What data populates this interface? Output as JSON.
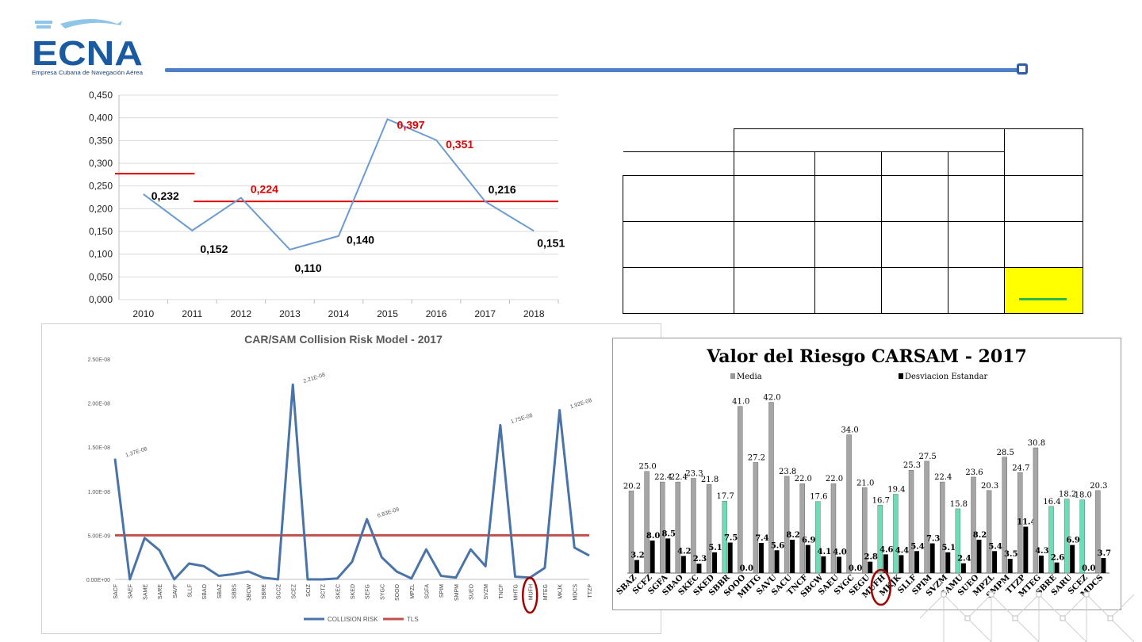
{
  "logo": {
    "name": "ECNA",
    "tagline": "Empresa Cubana de Navegación Aérea"
  },
  "chart_data": [
    {
      "type": "line",
      "title": "",
      "x": [
        "2010",
        "2011",
        "2012",
        "2013",
        "2014",
        "2015",
        "2016",
        "2017",
        "2018"
      ],
      "series": [
        {
          "values": [
            0.232,
            0.152,
            0.224,
            0.11,
            0.14,
            0.397,
            0.351,
            0.216,
            0.151
          ],
          "color": "#6b9bd1"
        }
      ],
      "point_labels": [
        "0,232",
        "0,152",
        "0,224",
        "0,110",
        "0,140",
        "0,397",
        "0,351",
        "0,216",
        "0,151"
      ],
      "label_colors": [
        "#000000",
        "#000000",
        "#e00000",
        "#000000",
        "#000000",
        "#e00000",
        "#e00000",
        "#000000",
        "#000000"
      ],
      "reference_lines": [
        {
          "value": 0.277,
          "from": "2010",
          "to": "2011",
          "color": "#e00000"
        },
        {
          "value": 0.216,
          "from": "2011",
          "to": "2018",
          "color": "#e00000"
        }
      ],
      "ylim": [
        0,
        0.45
      ],
      "yticks": [
        "0,000",
        "0,050",
        "0,100",
        "0,150",
        "0,200",
        "0,250",
        "0,300",
        "0,350",
        "0,400",
        "0,450"
      ],
      "grid": true
    },
    {
      "type": "line",
      "title": "CAR/SAM Collision Risk Model - 2017",
      "categories": [
        "SACF",
        "SAEF",
        "SAME",
        "SARE",
        "SAVF",
        "SLLF",
        "SBAO",
        "SBAZ",
        "SBBS",
        "SBCW",
        "SBRE",
        "SCCZ",
        "SCEZ",
        "SCIZ",
        "SCTZ",
        "SKEC",
        "SKED",
        "SEFG",
        "SYGC",
        "SOOO",
        "MPZL",
        "SGFA",
        "SPIM",
        "SMPM",
        "SUEO",
        "SVZM",
        "TNCF",
        "MHTG",
        "MUFH",
        "MTEG",
        "MKJK",
        "MDCS",
        "TTZP"
      ],
      "series": [
        {
          "name": "COLLISION RISK",
          "color": "#4a74a8",
          "values": [
            1.37e-08,
            0.0,
            4.7e-09,
            3.3e-09,
            0.0,
            1.8e-09,
            1.5e-09,
            4e-10,
            6e-10,
            9e-10,
            2e-10,
            0.0,
            2.21e-08,
            0.0,
            0.0,
            1e-10,
            2e-09,
            6.83e-09,
            2.5e-09,
            9e-10,
            1e-10,
            3.4e-09,
            4e-10,
            2e-10,
            3.4e-09,
            1.5e-09,
            1.75e-08,
            3e-10,
            2e-10,
            1.3e-09,
            1.92e-08,
            3.6e-09,
            2.7e-09
          ]
        },
        {
          "name": "TLS",
          "color": "#c0504d",
          "values": [
            5e-09,
            5e-09,
            5e-09,
            5e-09,
            5e-09,
            5e-09,
            5e-09,
            5e-09,
            5e-09,
            5e-09,
            5e-09,
            5e-09,
            5e-09,
            5e-09,
            5e-09,
            5e-09,
            5e-09,
            5e-09,
            5e-09,
            5e-09,
            5e-09,
            5e-09,
            5e-09,
            5e-09,
            5e-09,
            5e-09,
            5e-09,
            5e-09,
            5e-09,
            5e-09,
            5e-09,
            5e-09,
            5e-09
          ]
        }
      ],
      "point_labels": [
        {
          "index": 0,
          "text": "1.37E-08"
        },
        {
          "index": 12,
          "text": "2.21E-08"
        },
        {
          "index": 17,
          "text": "6.83E-09"
        },
        {
          "index": 26,
          "text": "1.75E-08"
        },
        {
          "index": 30,
          "text": "1.92E-08"
        }
      ],
      "yticks": [
        "0.00E+00",
        "5.00E-09",
        "1.00E-08",
        "1.50E-08",
        "2.00E-08",
        "2.50E-08"
      ],
      "ylim": [
        0,
        2.5e-08
      ],
      "highlight_category": "MUFH",
      "legend": [
        "COLLISION RISK",
        "TLS"
      ],
      "legend_position": "bottom"
    },
    {
      "type": "bar",
      "title": "Valor del Riesgo CARSAM - 2017",
      "legend": [
        "Media",
        "Desviacion Estandar"
      ],
      "legend_position": "top",
      "categories": [
        "SBAZ",
        "SCFZ",
        "SGFA",
        "SBAO",
        "SKEC",
        "SKED",
        "SBBR",
        "SOOO",
        "MHTG",
        "SAVU",
        "SACU",
        "TNCF",
        "SBCW",
        "SAEU",
        "SYGC",
        "SEGU",
        "MUFH",
        "MKJK",
        "SLLF",
        "SPIM",
        "SVZM",
        "SAMU",
        "SUEO",
        "MPZL",
        "SMPM",
        "TTZP",
        "MTEG",
        "SBRE",
        "SARU",
        "SCEZ",
        "MDCS"
      ],
      "series": [
        {
          "name": "Media",
          "values": [
            20.2,
            25.0,
            22.4,
            22.4,
            23.3,
            21.8,
            17.7,
            41.0,
            27.2,
            42.0,
            23.8,
            22.0,
            17.6,
            22.0,
            34.0,
            21.0,
            16.7,
            19.4,
            25.3,
            27.5,
            22.4,
            15.8,
            23.6,
            20.3,
            28.5,
            24.7,
            30.8,
            16.4,
            18.2,
            18.0,
            20.3
          ]
        },
        {
          "name": "Desviacion Estandar",
          "values": [
            3.2,
            8.0,
            8.5,
            4.2,
            2.3,
            5.1,
            7.5,
            0.0,
            7.4,
            5.6,
            8.2,
            6.9,
            4.1,
            4.0,
            0.0,
            2.8,
            4.6,
            4.4,
            5.4,
            7.3,
            5.1,
            2.4,
            8.2,
            5.4,
            3.5,
            11.4,
            4.3,
            2.6,
            6.9,
            0.0,
            3.7
          ]
        }
      ],
      "media_labels": [
        "20.2",
        "25.0",
        "22.4",
        "22.4",
        "23.3",
        "21.8",
        "17.7",
        "41.0",
        "27.2",
        "42.0",
        "23.8",
        "22.0",
        "17.6",
        "22.0",
        "34.0",
        "21.0",
        "16.7",
        "19.4",
        "25.3",
        "27.5",
        "22.4",
        "15.8",
        "23.6",
        "20.3",
        "28.5",
        "24.7",
        "30.8",
        "16.4",
        "18.2",
        "18.0",
        "20.3"
      ],
      "sd_labels": [
        "3.2",
        "8.0",
        "8.5",
        "4.2",
        "2.3",
        "5.1",
        "7.5",
        "0.0",
        "7.4",
        "5.6",
        "8.2",
        "6.9",
        "4.1",
        "4.0",
        "0.0",
        "2.8",
        "4.6",
        "4.4",
        "5.4",
        "7.3",
        "5.1",
        "2.4",
        "8.2",
        "5.4",
        "3.5",
        "11.4",
        "4.3",
        "2.6",
        "6.9",
        "0.0",
        "3.7"
      ],
      "green_highlight": [
        "SBBR",
        "SBCW",
        "MUFH",
        "MKJK",
        "SAMU",
        "SBRE",
        "SARU",
        "SCEZ"
      ],
      "highlight_category": "MUFH",
      "ylim": [
        0,
        46
      ]
    }
  ],
  "colors": {
    "brand_blue": "#2f5ea8",
    "highlight_yellow": "#ffff00",
    "highlight_green": "#2db84b"
  }
}
